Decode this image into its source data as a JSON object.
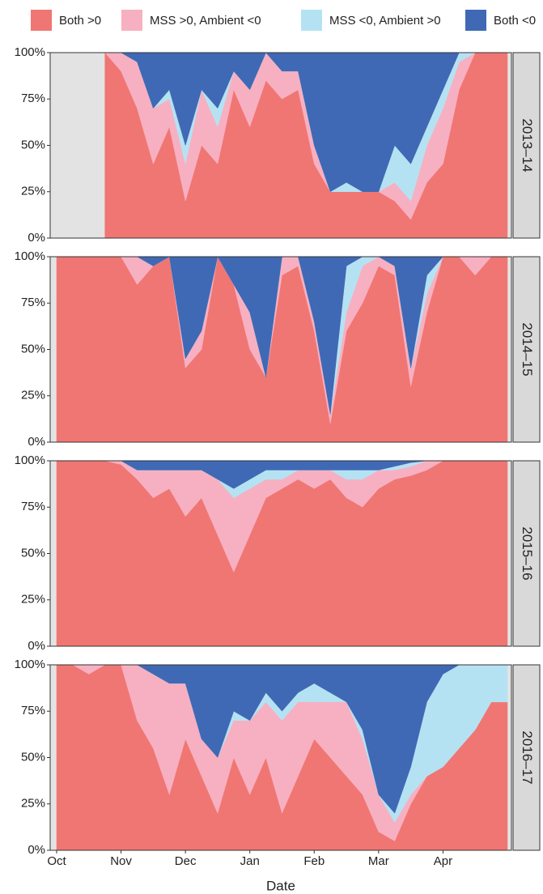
{
  "chart_data": [
    {
      "type": "area",
      "stacked": true,
      "title": "2013–14",
      "series": [
        {
          "name": "Both >0",
          "color": "#f07673",
          "values": [
            null,
            null,
            null,
            100,
            90,
            70,
            40,
            60,
            20,
            50,
            40,
            80,
            60,
            85,
            75,
            80,
            40,
            25,
            25,
            25,
            25,
            20,
            10,
            30,
            40,
            80,
            100,
            100,
            100
          ]
        },
        {
          "name": "MSS >0, Ambient <0",
          "color": "#f7b0c1",
          "values": [
            null,
            null,
            null,
            0,
            10,
            25,
            30,
            15,
            20,
            30,
            20,
            10,
            20,
            15,
            15,
            10,
            10,
            0,
            0,
            0,
            0,
            10,
            10,
            20,
            30,
            15,
            0,
            0,
            0
          ]
        },
        {
          "name": "MSS <0, Ambient >0",
          "color": "#b5e2f3",
          "values": [
            null,
            null,
            null,
            0,
            0,
            0,
            0,
            5,
            10,
            0,
            10,
            0,
            0,
            0,
            0,
            0,
            0,
            0,
            5,
            0,
            0,
            20,
            20,
            10,
            10,
            5,
            0,
            0,
            0
          ]
        },
        {
          "name": "Both <0",
          "color": "#3f69b5",
          "values": [
            null,
            null,
            null,
            0,
            0,
            5,
            30,
            20,
            50,
            20,
            30,
            10,
            20,
            0,
            10,
            10,
            50,
            75,
            70,
            75,
            75,
            50,
            60,
            40,
            20,
            0,
            0,
            0,
            0
          ]
        }
      ],
      "ylim": [
        0,
        100
      ],
      "yticks": [
        {
          "value": 0,
          "label": "0%"
        },
        {
          "value": 25,
          "label": "25%"
        },
        {
          "value": 50,
          "label": "50%"
        },
        {
          "value": 75,
          "label": "75%"
        },
        {
          "value": 100,
          "label": "100%"
        }
      ]
    },
    {
      "type": "area",
      "stacked": true,
      "title": "2014–15",
      "series": [
        {
          "color": "#f07673",
          "values": [
            100,
            100,
            100,
            100,
            100,
            85,
            95,
            100,
            40,
            50,
            100,
            85,
            50,
            35,
            90,
            95,
            60,
            10,
            60,
            75,
            95,
            90,
            30,
            70,
            100,
            100,
            90,
            100,
            100
          ]
        },
        {
          "color": "#f7b0c1",
          "values": [
            0,
            0,
            0,
            0,
            0,
            15,
            0,
            0,
            5,
            10,
            0,
            0,
            20,
            0,
            10,
            5,
            5,
            5,
            10,
            20,
            5,
            5,
            10,
            10,
            0,
            0,
            10,
            0,
            0
          ]
        },
        {
          "color": "#b5e2f3",
          "values": [
            0,
            0,
            0,
            0,
            0,
            0,
            0,
            0,
            0,
            0,
            0,
            0,
            0,
            0,
            0,
            0,
            0,
            0,
            25,
            5,
            0,
            0,
            0,
            10,
            0,
            0,
            0,
            0,
            0
          ]
        },
        {
          "color": "#3f69b5",
          "values": [
            0,
            0,
            0,
            0,
            0,
            0,
            5,
            0,
            55,
            40,
            0,
            15,
            30,
            65,
            0,
            0,
            35,
            85,
            5,
            0,
            0,
            5,
            60,
            10,
            0,
            0,
            0,
            0,
            0
          ]
        }
      ],
      "ylim": [
        0,
        100
      ],
      "yticks": [
        {
          "value": 0,
          "label": "0%"
        },
        {
          "value": 25,
          "label": "25%"
        },
        {
          "value": 50,
          "label": "50%"
        },
        {
          "value": 75,
          "label": "75%"
        },
        {
          "value": 100,
          "label": "100%"
        }
      ]
    },
    {
      "type": "area",
      "stacked": true,
      "title": "2015–16",
      "series": [
        {
          "color": "#f07673",
          "values": [
            100,
            100,
            100,
            100,
            98,
            90,
            80,
            85,
            70,
            80,
            60,
            40,
            60,
            80,
            85,
            90,
            85,
            90,
            80,
            75,
            85,
            90,
            92,
            95,
            100,
            100,
            100,
            100,
            100
          ]
        },
        {
          "color": "#f7b0c1",
          "values": [
            0,
            0,
            0,
            0,
            2,
            5,
            15,
            10,
            25,
            15,
            30,
            40,
            25,
            10,
            5,
            5,
            10,
            5,
            10,
            15,
            10,
            5,
            5,
            5,
            0,
            0,
            0,
            0,
            0
          ]
        },
        {
          "color": "#b5e2f3",
          "values": [
            0,
            0,
            0,
            0,
            0,
            0,
            0,
            0,
            0,
            0,
            0,
            5,
            5,
            5,
            5,
            0,
            0,
            0,
            5,
            5,
            0,
            2,
            2,
            0,
            0,
            0,
            0,
            0,
            0
          ]
        },
        {
          "color": "#3f69b5",
          "values": [
            0,
            0,
            0,
            0,
            0,
            5,
            5,
            5,
            5,
            5,
            10,
            15,
            10,
            5,
            5,
            5,
            5,
            5,
            5,
            5,
            5,
            3,
            1,
            0,
            0,
            0,
            0,
            0,
            0
          ]
        }
      ],
      "ylim": [
        0,
        100
      ],
      "yticks": [
        {
          "value": 0,
          "label": "0%"
        },
        {
          "value": 25,
          "label": "25%"
        },
        {
          "value": 50,
          "label": "50%"
        },
        {
          "value": 75,
          "label": "75%"
        },
        {
          "value": 100,
          "label": "100%"
        }
      ]
    },
    {
      "type": "area",
      "stacked": true,
      "title": "2016–17",
      "xlabel": "Date",
      "categories": [
        "Oct",
        null,
        null,
        null,
        "Nov",
        null,
        null,
        null,
        "Dec",
        null,
        null,
        null,
        "Jan",
        null,
        null,
        null,
        "Feb",
        null,
        null,
        null,
        "Mar",
        null,
        null,
        null,
        "Apr",
        null,
        null,
        null,
        null
      ],
      "series": [
        {
          "color": "#f07673",
          "values": [
            100,
            100,
            95,
            100,
            100,
            70,
            55,
            30,
            60,
            40,
            20,
            50,
            30,
            50,
            20,
            40,
            60,
            50,
            40,
            30,
            10,
            5,
            25,
            40,
            45,
            55,
            65,
            80,
            80
          ]
        },
        {
          "color": "#f7b0c1",
          "values": [
            0,
            0,
            5,
            0,
            0,
            30,
            40,
            60,
            30,
            20,
            30,
            20,
            40,
            30,
            50,
            40,
            20,
            30,
            40,
            30,
            20,
            10,
            5,
            0,
            0,
            0,
            0,
            0,
            0
          ]
        },
        {
          "color": "#b5e2f3",
          "values": [
            0,
            0,
            0,
            0,
            0,
            0,
            0,
            0,
            0,
            0,
            0,
            5,
            0,
            5,
            5,
            5,
            10,
            5,
            0,
            5,
            0,
            5,
            15,
            40,
            50,
            45,
            35,
            20,
            20
          ]
        },
        {
          "color": "#3f69b5",
          "values": [
            0,
            0,
            0,
            0,
            0,
            0,
            5,
            10,
            10,
            40,
            50,
            25,
            30,
            15,
            25,
            15,
            10,
            15,
            20,
            35,
            70,
            80,
            55,
            20,
            5,
            0,
            0,
            0,
            0
          ]
        }
      ],
      "ylim": [
        0,
        100
      ],
      "yticks": [
        {
          "value": 0,
          "label": "0%"
        },
        {
          "value": 25,
          "label": "25%"
        },
        {
          "value": 50,
          "label": "50%"
        },
        {
          "value": 75,
          "label": "75%"
        },
        {
          "value": 100,
          "label": "100%"
        }
      ]
    }
  ]
}
